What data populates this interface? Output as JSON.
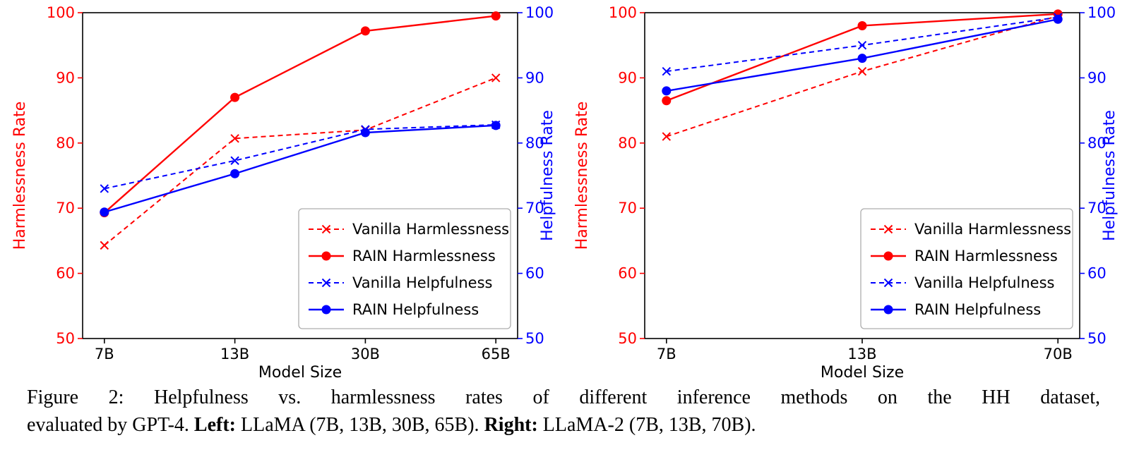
{
  "caption": {
    "line1": "Figure 2:  Helpfulness vs.  harmlessness rates of different inference methods on the HH dataset,",
    "line2": {
      "prefix": "evaluated by GPT-4. ",
      "left_label": "Left:",
      "left_text": " LLaMA (7B, 13B, 30B, 65B). ",
      "right_label": "Right:",
      "right_text": " LLaMA-2 (7B, 13B, 70B)."
    }
  },
  "chart_data": [
    {
      "type": "line",
      "title": "",
      "xlabel": "Model Size",
      "ylabel_left": "Harmlessness Rate",
      "ylabel_right": "Helpfulness Rate",
      "axis_color_left": "#ff0000",
      "axis_color_right": "#0000ff",
      "ylim": [
        50,
        100
      ],
      "yticks": [
        50,
        60,
        70,
        80,
        90,
        100
      ],
      "categories": [
        "7B",
        "13B",
        "30B",
        "65B"
      ],
      "grid": false,
      "legend_position": "lower right",
      "series": [
        {
          "name": "Vanilla Harmlessness",
          "color": "#ff0000",
          "line": "dashed",
          "marker": "x",
          "values": [
            64.3,
            80.7,
            82.0,
            90.0
          ]
        },
        {
          "name": "RAIN Harmlessness",
          "color": "#ff0000",
          "line": "solid",
          "marker": "circle",
          "values": [
            69.3,
            87.0,
            97.2,
            99.5
          ]
        },
        {
          "name": "Vanilla Helpfulness",
          "color": "#0000ff",
          "line": "dashed",
          "marker": "x",
          "values": [
            73.0,
            77.3,
            82.1,
            82.8
          ]
        },
        {
          "name": "RAIN Helpfulness",
          "color": "#0000ff",
          "line": "solid",
          "marker": "circle",
          "values": [
            69.4,
            75.3,
            81.6,
            82.7
          ]
        }
      ]
    },
    {
      "type": "line",
      "title": "",
      "xlabel": "Model Size",
      "ylabel_left": "Harmlessness Rate",
      "ylabel_right": "Helpfulness Rate",
      "axis_color_left": "#ff0000",
      "axis_color_right": "#0000ff",
      "ylim": [
        50,
        100
      ],
      "yticks": [
        50,
        60,
        70,
        80,
        90,
        100
      ],
      "categories": [
        "7B",
        "13B",
        "70B"
      ],
      "grid": false,
      "legend_position": "lower right",
      "series": [
        {
          "name": "Vanilla Harmlessness",
          "color": "#ff0000",
          "line": "dashed",
          "marker": "x",
          "values": [
            81.0,
            91.0,
            99.5
          ]
        },
        {
          "name": "RAIN Harmlessness",
          "color": "#ff0000",
          "line": "solid",
          "marker": "circle",
          "values": [
            86.5,
            98.0,
            99.8
          ]
        },
        {
          "name": "Vanilla Helpfulness",
          "color": "#0000ff",
          "line": "dashed",
          "marker": "x",
          "values": [
            91.0,
            95.0,
            99.3
          ]
        },
        {
          "name": "RAIN Helpfulness",
          "color": "#0000ff",
          "line": "solid",
          "marker": "circle",
          "values": [
            88.0,
            93.0,
            99.0
          ]
        }
      ]
    }
  ]
}
